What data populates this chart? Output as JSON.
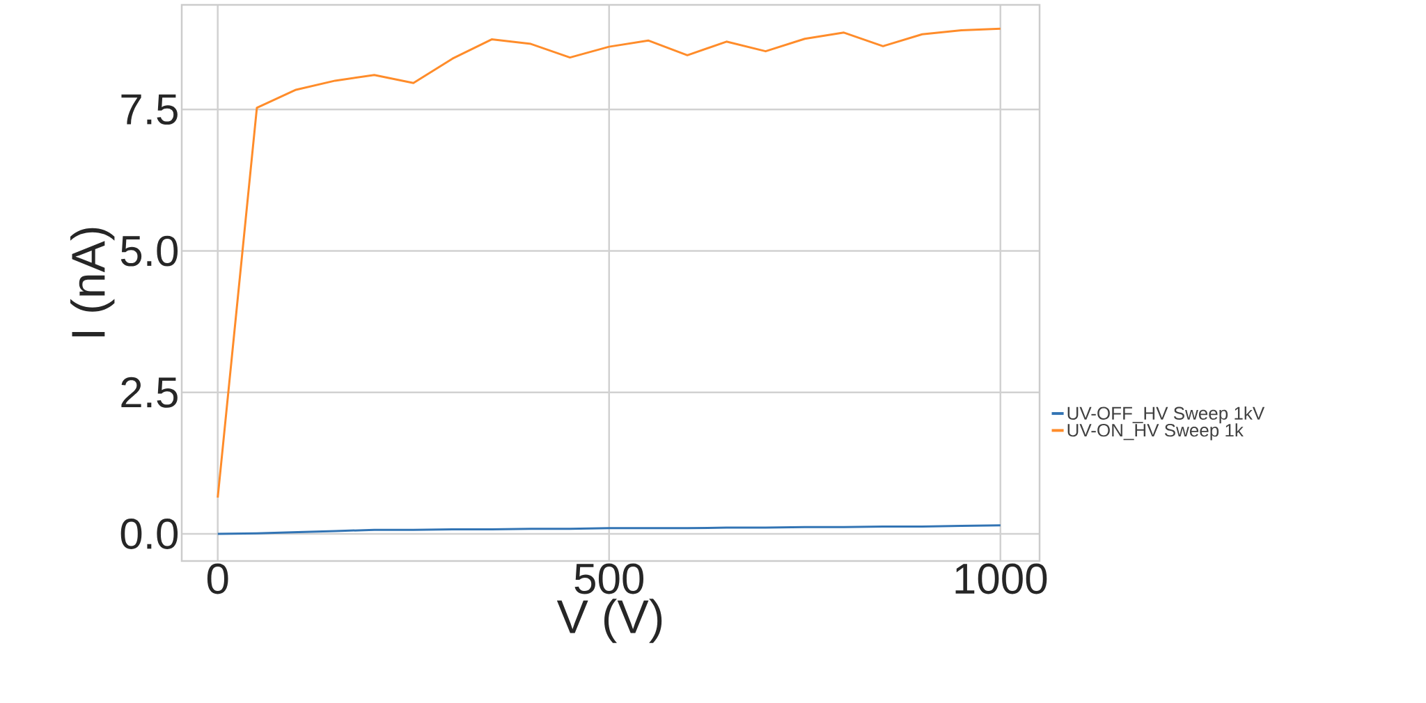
{
  "chart_data": {
    "type": "line",
    "xlabel": "V (V)",
    "ylabel": "I (nA)",
    "x": [
      0,
      50,
      100,
      150,
      200,
      250,
      300,
      350,
      400,
      450,
      500,
      550,
      600,
      650,
      700,
      750,
      800,
      850,
      900,
      950,
      1000
    ],
    "series": [
      {
        "name": "UV-OFF_HV Sweep 1kV",
        "color": "#3274b4",
        "values": [
          0.0,
          0.01,
          0.03,
          0.05,
          0.07,
          0.07,
          0.08,
          0.08,
          0.09,
          0.09,
          0.1,
          0.1,
          0.1,
          0.11,
          0.11,
          0.12,
          0.12,
          0.13,
          0.13,
          0.14,
          0.15
        ]
      },
      {
        "name": "UV-ON_HV Sweep 1k",
        "color": "#ff8c2a",
        "values": [
          0.64,
          7.53,
          7.85,
          8.01,
          8.11,
          7.97,
          8.4,
          8.74,
          8.66,
          8.42,
          8.61,
          8.72,
          8.46,
          8.7,
          8.53,
          8.75,
          8.86,
          8.62,
          8.83,
          8.9,
          8.93
        ]
      }
    ],
    "xlim": [
      -46,
      1050
    ],
    "ylim": [
      -0.48,
      9.35
    ],
    "xticks": [
      0,
      500,
      1000
    ],
    "yticks": [
      {
        "value": 0,
        "label": "0.0"
      },
      2.5,
      {
        "value": 5,
        "label": "5.0"
      },
      7.5
    ],
    "grid": true,
    "legend": "right",
    "marker": "none",
    "line_style": "solid"
  }
}
